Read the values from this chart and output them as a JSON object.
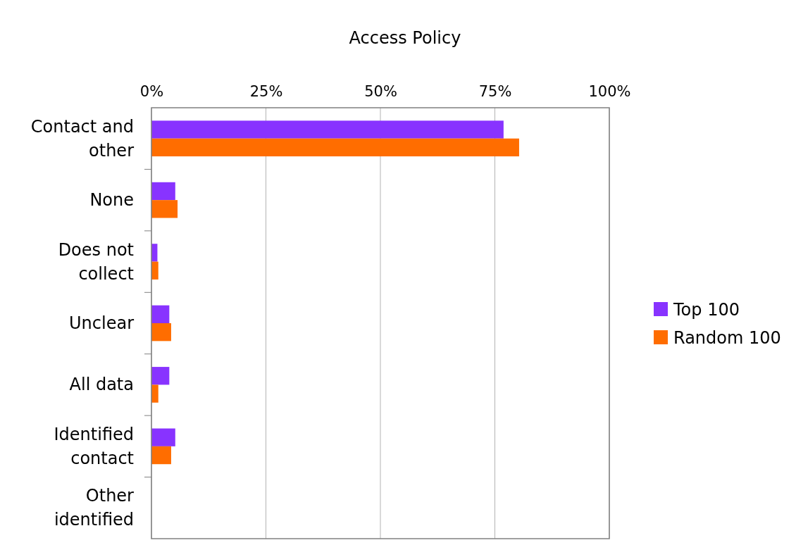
{
  "chart_data": {
    "type": "bar",
    "title": "Access Policy",
    "orientation": "horizontal",
    "categories": [
      "Contact and other",
      "None",
      "Does not collect",
      "Unclear",
      "All data",
      "Identified contact",
      "Other identified"
    ],
    "series": [
      {
        "name": "Top 100",
        "color": "#8833ff",
        "values": [
          76.9,
          5.2,
          1.3,
          3.9,
          3.9,
          5.2,
          0
        ]
      },
      {
        "name": "Random 100",
        "color": "#ff6d00",
        "values": [
          80.3,
          5.7,
          1.5,
          4.3,
          1.5,
          4.3,
          0
        ]
      }
    ],
    "xlim": [
      0,
      100
    ],
    "xticks": [
      {
        "value": 0,
        "label": "0%"
      },
      {
        "value": 25,
        "label": "25%"
      },
      {
        "value": 50,
        "label": "50%"
      },
      {
        "value": 75,
        "label": "75%"
      },
      {
        "value": 100,
        "label": "100%"
      }
    ],
    "grid": "x",
    "legend": "right"
  }
}
